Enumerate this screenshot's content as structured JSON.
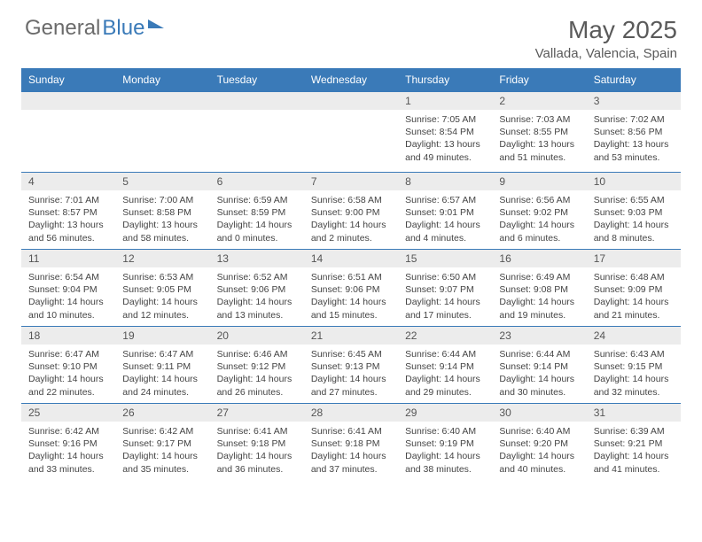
{
  "logo": {
    "part1": "General",
    "part2": "Blue"
  },
  "title": "May 2025",
  "subtitle": "Vallada, Valencia, Spain",
  "colors": {
    "header_bg": "#3a7ab8",
    "band_bg": "#ececec",
    "text": "#444444",
    "title_text": "#5a5a5a"
  },
  "day_names": [
    "Sunday",
    "Monday",
    "Tuesday",
    "Wednesday",
    "Thursday",
    "Friday",
    "Saturday"
  ],
  "weeks": [
    [
      null,
      null,
      null,
      null,
      {
        "n": "1",
        "sr": "7:05 AM",
        "ss": "8:54 PM",
        "dl": "13 hours and 49 minutes."
      },
      {
        "n": "2",
        "sr": "7:03 AM",
        "ss": "8:55 PM",
        "dl": "13 hours and 51 minutes."
      },
      {
        "n": "3",
        "sr": "7:02 AM",
        "ss": "8:56 PM",
        "dl": "13 hours and 53 minutes."
      }
    ],
    [
      {
        "n": "4",
        "sr": "7:01 AM",
        "ss": "8:57 PM",
        "dl": "13 hours and 56 minutes."
      },
      {
        "n": "5",
        "sr": "7:00 AM",
        "ss": "8:58 PM",
        "dl": "13 hours and 58 minutes."
      },
      {
        "n": "6",
        "sr": "6:59 AM",
        "ss": "8:59 PM",
        "dl": "14 hours and 0 minutes."
      },
      {
        "n": "7",
        "sr": "6:58 AM",
        "ss": "9:00 PM",
        "dl": "14 hours and 2 minutes."
      },
      {
        "n": "8",
        "sr": "6:57 AM",
        "ss": "9:01 PM",
        "dl": "14 hours and 4 minutes."
      },
      {
        "n": "9",
        "sr": "6:56 AM",
        "ss": "9:02 PM",
        "dl": "14 hours and 6 minutes."
      },
      {
        "n": "10",
        "sr": "6:55 AM",
        "ss": "9:03 PM",
        "dl": "14 hours and 8 minutes."
      }
    ],
    [
      {
        "n": "11",
        "sr": "6:54 AM",
        "ss": "9:04 PM",
        "dl": "14 hours and 10 minutes."
      },
      {
        "n": "12",
        "sr": "6:53 AM",
        "ss": "9:05 PM",
        "dl": "14 hours and 12 minutes."
      },
      {
        "n": "13",
        "sr": "6:52 AM",
        "ss": "9:06 PM",
        "dl": "14 hours and 13 minutes."
      },
      {
        "n": "14",
        "sr": "6:51 AM",
        "ss": "9:06 PM",
        "dl": "14 hours and 15 minutes."
      },
      {
        "n": "15",
        "sr": "6:50 AM",
        "ss": "9:07 PM",
        "dl": "14 hours and 17 minutes."
      },
      {
        "n": "16",
        "sr": "6:49 AM",
        "ss": "9:08 PM",
        "dl": "14 hours and 19 minutes."
      },
      {
        "n": "17",
        "sr": "6:48 AM",
        "ss": "9:09 PM",
        "dl": "14 hours and 21 minutes."
      }
    ],
    [
      {
        "n": "18",
        "sr": "6:47 AM",
        "ss": "9:10 PM",
        "dl": "14 hours and 22 minutes."
      },
      {
        "n": "19",
        "sr": "6:47 AM",
        "ss": "9:11 PM",
        "dl": "14 hours and 24 minutes."
      },
      {
        "n": "20",
        "sr": "6:46 AM",
        "ss": "9:12 PM",
        "dl": "14 hours and 26 minutes."
      },
      {
        "n": "21",
        "sr": "6:45 AM",
        "ss": "9:13 PM",
        "dl": "14 hours and 27 minutes."
      },
      {
        "n": "22",
        "sr": "6:44 AM",
        "ss": "9:14 PM",
        "dl": "14 hours and 29 minutes."
      },
      {
        "n": "23",
        "sr": "6:44 AM",
        "ss": "9:14 PM",
        "dl": "14 hours and 30 minutes."
      },
      {
        "n": "24",
        "sr": "6:43 AM",
        "ss": "9:15 PM",
        "dl": "14 hours and 32 minutes."
      }
    ],
    [
      {
        "n": "25",
        "sr": "6:42 AM",
        "ss": "9:16 PM",
        "dl": "14 hours and 33 minutes."
      },
      {
        "n": "26",
        "sr": "6:42 AM",
        "ss": "9:17 PM",
        "dl": "14 hours and 35 minutes."
      },
      {
        "n": "27",
        "sr": "6:41 AM",
        "ss": "9:18 PM",
        "dl": "14 hours and 36 minutes."
      },
      {
        "n": "28",
        "sr": "6:41 AM",
        "ss": "9:18 PM",
        "dl": "14 hours and 37 minutes."
      },
      {
        "n": "29",
        "sr": "6:40 AM",
        "ss": "9:19 PM",
        "dl": "14 hours and 38 minutes."
      },
      {
        "n": "30",
        "sr": "6:40 AM",
        "ss": "9:20 PM",
        "dl": "14 hours and 40 minutes."
      },
      {
        "n": "31",
        "sr": "6:39 AM",
        "ss": "9:21 PM",
        "dl": "14 hours and 41 minutes."
      }
    ]
  ],
  "labels": {
    "sunrise": "Sunrise: ",
    "sunset": "Sunset: ",
    "daylight": "Daylight: "
  }
}
